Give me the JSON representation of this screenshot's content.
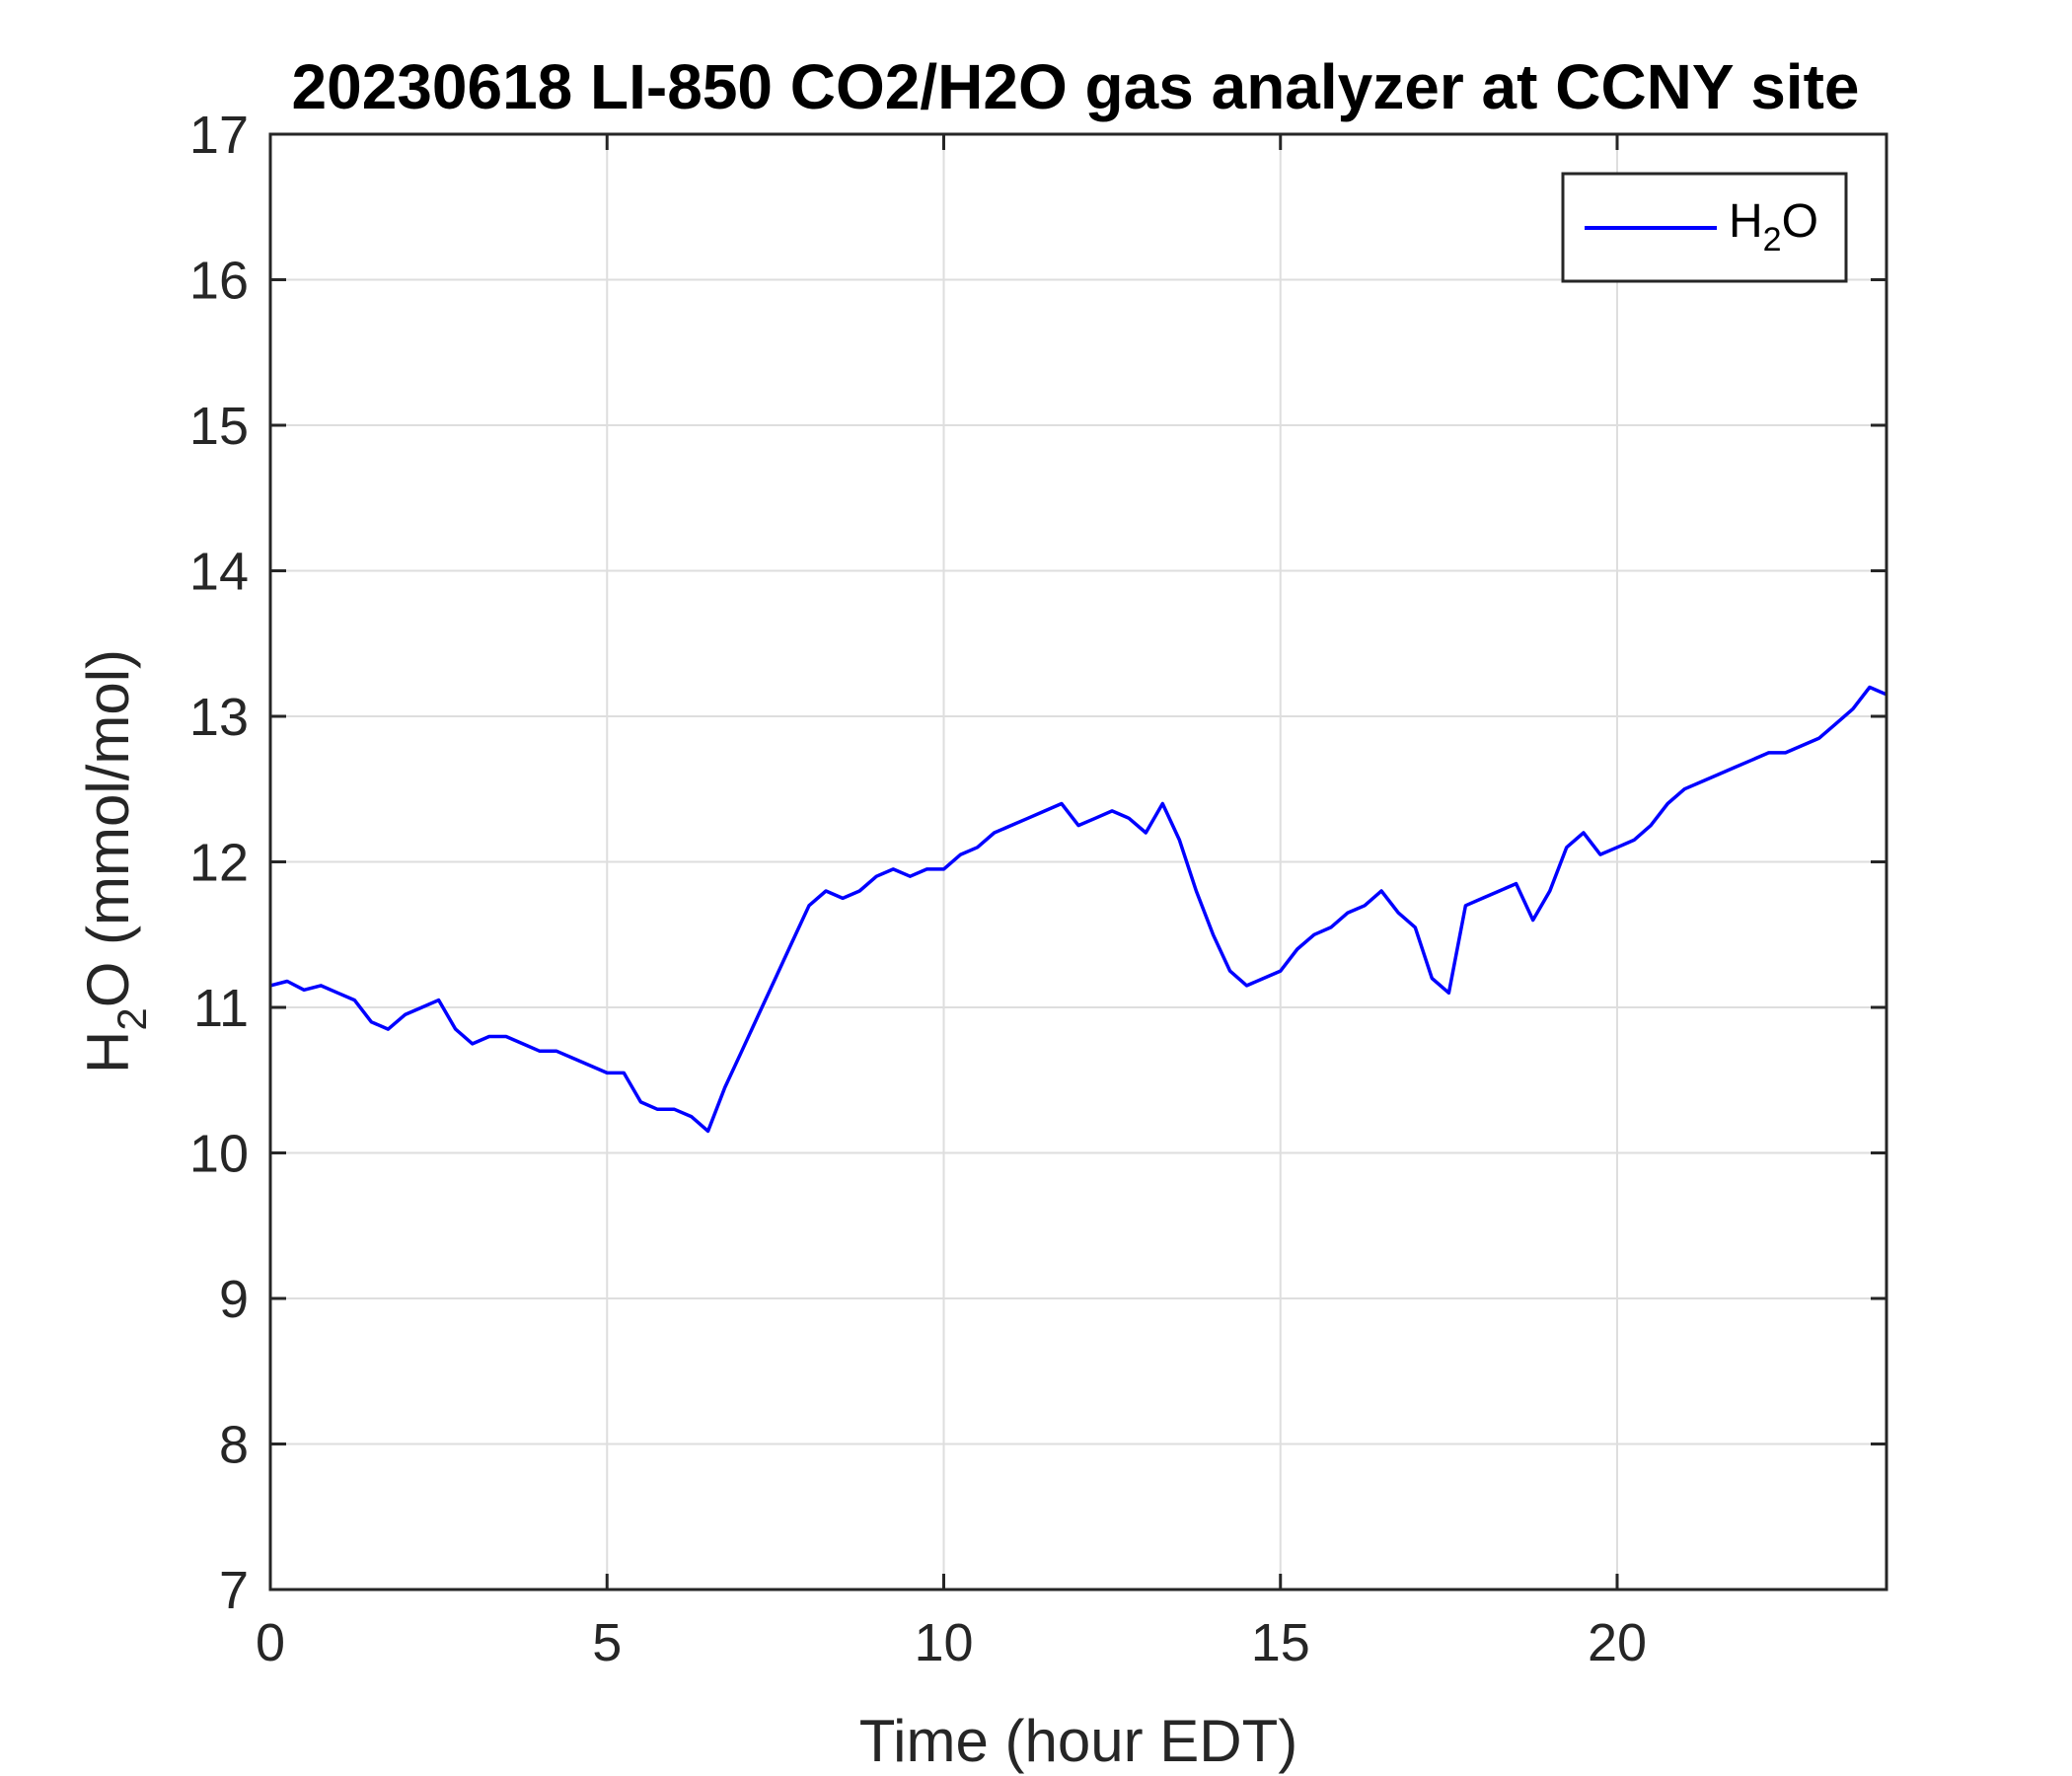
{
  "chart_data": {
    "type": "line",
    "title": "20230618 LI-850 CO2/H2O gas analyzer at CCNY site",
    "xlabel": "Time (hour EDT)",
    "ylabel": {
      "base": "H",
      "sub": "2",
      "rest": "O (mmol/mol)"
    },
    "xlim": [
      0,
      24
    ],
    "ylim": [
      7,
      17
    ],
    "xticks": [
      0,
      5,
      10,
      15,
      20
    ],
    "yticks": [
      7,
      8,
      9,
      10,
      11,
      12,
      13,
      14,
      15,
      16,
      17
    ],
    "grid": true,
    "legend_position": "top-right",
    "colors": {
      "series": "#0000ff",
      "axis": "#262626",
      "grid": "#dedede"
    },
    "series": [
      {
        "name": {
          "base": "H",
          "sub": "2",
          "rest": "O"
        },
        "x": [
          0,
          0.25,
          0.5,
          0.75,
          1.0,
          1.25,
          1.5,
          1.75,
          2.0,
          2.25,
          2.5,
          2.75,
          3.0,
          3.25,
          3.5,
          3.75,
          4.0,
          4.25,
          4.5,
          4.75,
          5.0,
          5.25,
          5.5,
          5.75,
          6.0,
          6.25,
          6.5,
          6.75,
          7.0,
          7.25,
          7.5,
          7.75,
          8.0,
          8.25,
          8.5,
          8.75,
          9.0,
          9.25,
          9.5,
          9.75,
          10.0,
          10.25,
          10.5,
          10.75,
          11.0,
          11.25,
          11.5,
          11.75,
          12.0,
          12.25,
          12.5,
          12.75,
          13.0,
          13.25,
          13.5,
          13.75,
          14.0,
          14.25,
          14.5,
          14.75,
          15.0,
          15.25,
          15.5,
          15.75,
          16.0,
          16.25,
          16.5,
          16.75,
          17.0,
          17.25,
          17.5,
          17.75,
          18.0,
          18.25,
          18.5,
          18.75,
          19.0,
          19.25,
          19.5,
          19.75,
          20.0,
          20.25,
          20.5,
          20.75,
          21.0,
          21.25,
          21.5,
          21.75,
          22.0,
          22.25,
          22.5,
          22.75,
          23.0,
          23.25,
          23.5,
          23.75,
          24.0
        ],
        "values": [
          11.15,
          11.18,
          11.12,
          11.15,
          11.1,
          11.05,
          10.9,
          10.85,
          10.95,
          11.0,
          11.05,
          10.85,
          10.75,
          10.8,
          10.8,
          10.75,
          10.7,
          10.7,
          10.65,
          10.6,
          10.55,
          10.55,
          10.35,
          10.3,
          10.3,
          10.25,
          10.15,
          10.45,
          10.7,
          10.95,
          11.2,
          11.45,
          11.7,
          11.8,
          11.75,
          11.8,
          11.9,
          11.95,
          11.9,
          11.95,
          11.95,
          12.05,
          12.1,
          12.2,
          12.25,
          12.3,
          12.35,
          12.4,
          12.25,
          12.3,
          12.35,
          12.3,
          12.2,
          12.4,
          12.15,
          11.8,
          11.5,
          11.25,
          11.15,
          11.2,
          11.25,
          11.4,
          11.5,
          11.55,
          11.65,
          11.7,
          11.8,
          11.65,
          11.55,
          11.2,
          11.1,
          11.7,
          11.75,
          11.8,
          11.85,
          11.6,
          11.8,
          12.1,
          12.2,
          12.05,
          12.1,
          12.15,
          12.25,
          12.4,
          12.5,
          12.55,
          12.6,
          12.65,
          12.7,
          12.75,
          12.75,
          12.8,
          12.85,
          12.95,
          13.05,
          13.2,
          13.15
        ]
      }
    ]
  }
}
